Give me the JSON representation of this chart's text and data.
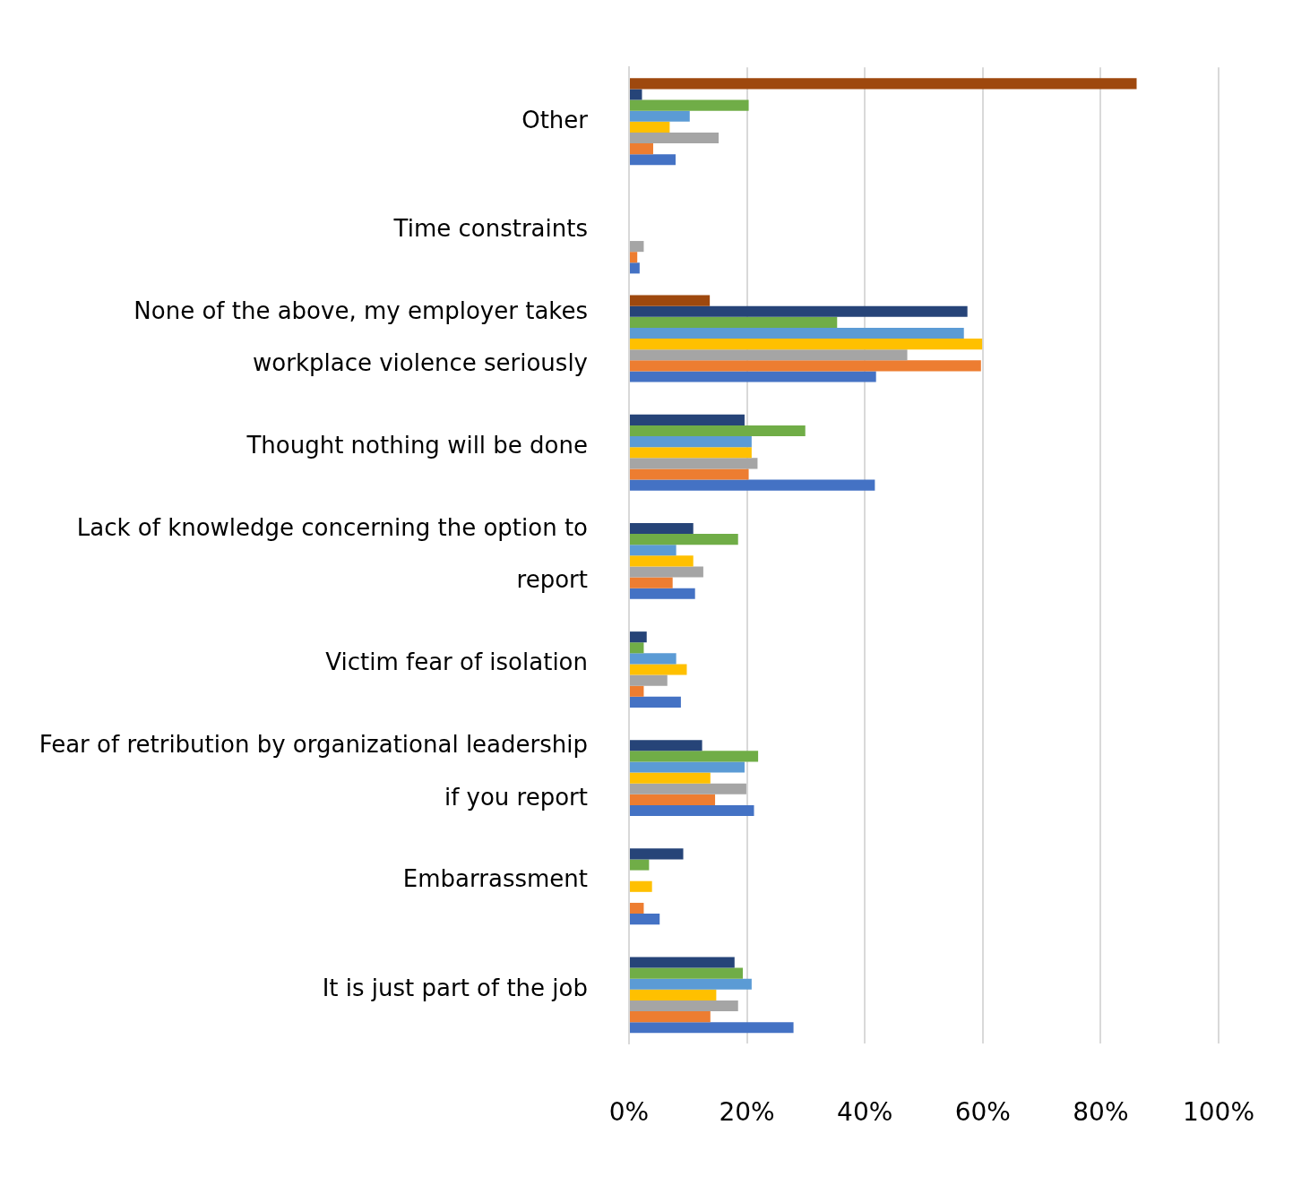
{
  "chart_data": {
    "type": "bar",
    "orientation": "horizontal",
    "categories": [
      "Other",
      "Time constraints",
      "None of the above, my employer takes workplace violence seriously",
      "Thought nothing will be done",
      "Lack of knowledge concerning the option to report",
      "Victim fear of isolation",
      "Fear of retribution by organizational leadership if you report",
      "Embarrassment",
      "It is just part of the job"
    ],
    "series": [
      {
        "color": "#9e480e",
        "values": [
          86.1,
          null,
          13.7,
          null,
          null,
          null,
          null,
          null,
          null
        ]
      },
      {
        "color": "#264478",
        "values": [
          2.2,
          null,
          57.4,
          19.6,
          10.9,
          3.0,
          12.4,
          9.2,
          17.9
        ]
      },
      {
        "color": "#70ad47",
        "values": [
          20.3,
          null,
          35.3,
          29.9,
          18.5,
          2.5,
          21.9,
          3.4,
          19.3
        ]
      },
      {
        "color": "#5b9bd5",
        "values": [
          10.3,
          null,
          56.8,
          20.8,
          8.0,
          8.0,
          19.6,
          null,
          20.8
        ]
      },
      {
        "color": "#ffc000",
        "values": [
          6.9,
          null,
          59.9,
          20.8,
          10.9,
          9.8,
          13.8,
          3.9,
          14.8
        ]
      },
      {
        "color": "#a5a5a5",
        "values": [
          15.2,
          2.5,
          47.2,
          21.8,
          12.6,
          6.5,
          19.9,
          null,
          18.5
        ]
      },
      {
        "color": "#ed7d31",
        "values": [
          4.1,
          1.4,
          59.7,
          20.3,
          7.4,
          2.5,
          14.6,
          2.5,
          13.8
        ]
      },
      {
        "color": "#4472c4",
        "values": [
          7.9,
          1.8,
          41.9,
          41.7,
          11.2,
          8.8,
          21.2,
          5.2,
          27.9
        ]
      }
    ],
    "xlim": [
      0,
      100
    ],
    "xticks": [
      {
        "value": 0,
        "label": "0%"
      },
      {
        "value": 20,
        "label": "20%"
      },
      {
        "value": 40,
        "label": "40%"
      },
      {
        "value": 60,
        "label": "60%"
      },
      {
        "value": 80,
        "label": "80%"
      },
      {
        "value": 100,
        "label": "100%"
      }
    ],
    "grid": "x",
    "legend": false
  }
}
